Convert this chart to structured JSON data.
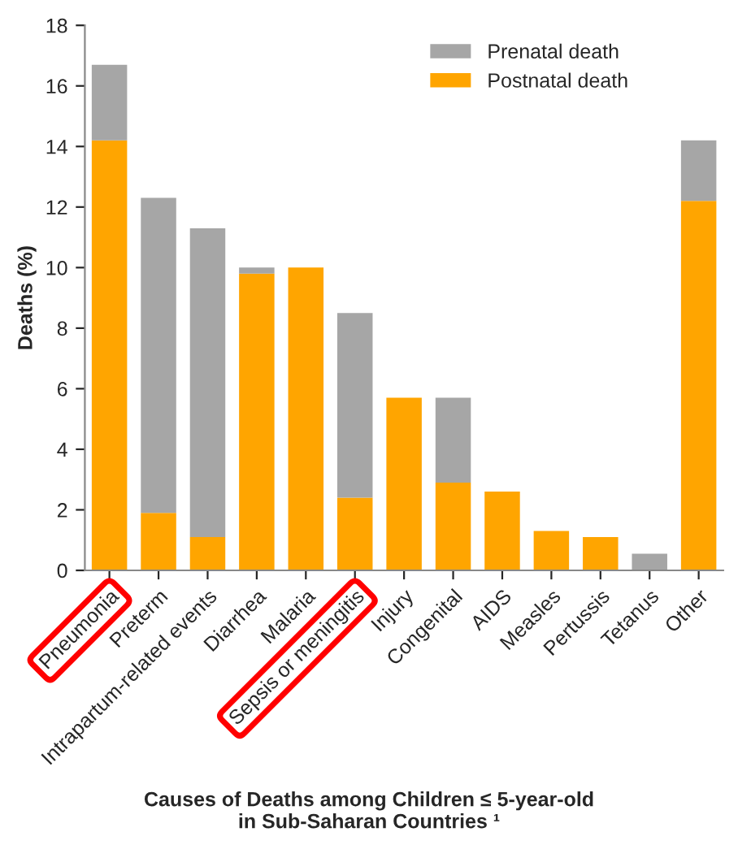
{
  "chart_data": {
    "type": "bar",
    "stacked": true,
    "xlabel": "Causes of Deaths among Children ≤ 5-year-old\nin Sub-Saharan Countries ¹",
    "ylabel": "Deaths (%)",
    "categories": [
      "Pneumonia",
      "Preterm",
      "Intrapartum-related events",
      "Diarrhea",
      "Malaria",
      "Sepsis or meningitis",
      "Injury",
      "Congenital",
      "AIDS",
      "Measles",
      "Pertussis",
      "Tetanus",
      "Other"
    ],
    "series": [
      {
        "name": "Postnatal death",
        "color": "#ffa500",
        "values": [
          14.2,
          1.9,
          1.1,
          9.8,
          10.0,
          2.4,
          5.7,
          2.9,
          2.6,
          1.3,
          1.1,
          0,
          12.2
        ]
      },
      {
        "name": "Prenatal death",
        "color": "#a6a6a6",
        "values": [
          2.5,
          10.4,
          10.2,
          0.2,
          0,
          6.1,
          0,
          2.8,
          0,
          0,
          0,
          0.55,
          2.0
        ]
      }
    ],
    "ylim": [
      0,
      18
    ],
    "yticks": [
      0,
      2,
      4,
      6,
      8,
      10,
      12,
      14,
      16,
      18
    ],
    "grid": false,
    "legend": "top right"
  }
}
